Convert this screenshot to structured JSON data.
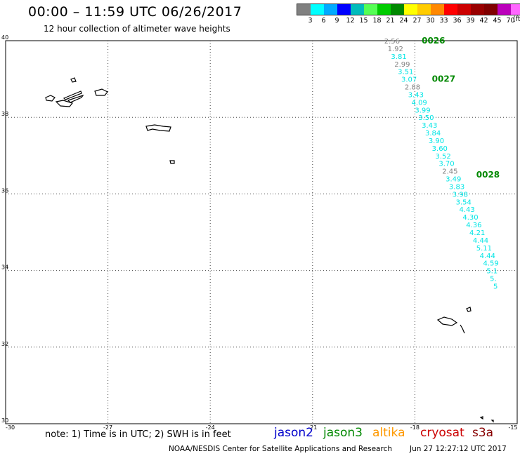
{
  "header": {
    "title": "00:00 – 11:59 UTC 06/26/2017",
    "subtitle": "12 hour collection of altimeter wave heights"
  },
  "scale": {
    "colors": [
      "#808080",
      "#00ffff",
      "#00aaff",
      "#0000ff",
      "#00bbbb",
      "#55ff55",
      "#00cc00",
      "#008800",
      "#ffff00",
      "#ffcc00",
      "#ff8800",
      "#ff0000",
      "#cc0000",
      "#990000",
      "#800000",
      "#bb00bb",
      "#ff66ff",
      "#000000"
    ],
    "labels": [
      "3",
      "6",
      "9",
      "12",
      "15",
      "18",
      "21",
      "24",
      "27",
      "30",
      "33",
      "36",
      "39",
      "42",
      "45",
      "70"
    ],
    "unit": "(ft)"
  },
  "axes": {
    "lat_labels": [
      "40",
      "38",
      "36",
      "34",
      "32",
      "30"
    ],
    "lon_labels": [
      "-30",
      "-27",
      "-24",
      "-21",
      "-18",
      "-15"
    ]
  },
  "track": {
    "times": [
      {
        "label": "0026",
        "lon": -17.8,
        "lat": 40.0
      },
      {
        "label": "0027",
        "lon": -17.5,
        "lat": 39.0
      },
      {
        "label": "0028",
        "lon": -16.2,
        "lat": 36.5
      }
    ],
    "points": [
      {
        "v": "2.56",
        "lon": -18.9,
        "lat": 40.0,
        "c": "#808080"
      },
      {
        "v": "1.92",
        "lon": -18.8,
        "lat": 39.8,
        "c": "#808080"
      },
      {
        "v": "3.81",
        "lon": -18.7,
        "lat": 39.6,
        "c": "#00e5e5"
      },
      {
        "v": "2.99",
        "lon": -18.6,
        "lat": 39.4,
        "c": "#808080"
      },
      {
        "v": "3.51",
        "lon": -18.5,
        "lat": 39.2,
        "c": "#00e5e5"
      },
      {
        "v": "3.07",
        "lon": -18.4,
        "lat": 39.0,
        "c": "#00e5e5"
      },
      {
        "v": "2.88",
        "lon": -18.3,
        "lat": 38.8,
        "c": "#808080"
      },
      {
        "v": "3.43",
        "lon": -18.2,
        "lat": 38.6,
        "c": "#00e5e5"
      },
      {
        "v": "4.09",
        "lon": -18.1,
        "lat": 38.4,
        "c": "#00e5e5"
      },
      {
        "v": "3.99",
        "lon": -18.0,
        "lat": 38.2,
        "c": "#00e5e5"
      },
      {
        "v": "3.50",
        "lon": -17.9,
        "lat": 38.0,
        "c": "#00e5e5"
      },
      {
        "v": "3.43",
        "lon": -17.8,
        "lat": 37.8,
        "c": "#00e5e5"
      },
      {
        "v": "3.84",
        "lon": -17.7,
        "lat": 37.6,
        "c": "#00e5e5"
      },
      {
        "v": "3.90",
        "lon": -17.6,
        "lat": 37.4,
        "c": "#00e5e5"
      },
      {
        "v": "3.60",
        "lon": -17.5,
        "lat": 37.2,
        "c": "#00e5e5"
      },
      {
        "v": "3.52",
        "lon": -17.4,
        "lat": 37.0,
        "c": "#00e5e5"
      },
      {
        "v": "3.70",
        "lon": -17.3,
        "lat": 36.8,
        "c": "#00e5e5"
      },
      {
        "v": "2.45",
        "lon": -17.2,
        "lat": 36.6,
        "c": "#808080"
      },
      {
        "v": "3.49",
        "lon": -17.1,
        "lat": 36.4,
        "c": "#00e5e5"
      },
      {
        "v": "3.83",
        "lon": -17.0,
        "lat": 36.2,
        "c": "#00e5e5"
      },
      {
        "v": "3.98",
        "lon": -16.9,
        "lat": 36.0,
        "c": "#00e5e5"
      },
      {
        "v": "3.54",
        "lon": -16.8,
        "lat": 35.8,
        "c": "#00e5e5"
      },
      {
        "v": "4.43",
        "lon": -16.7,
        "lat": 35.6,
        "c": "#00e5e5"
      },
      {
        "v": "4.30",
        "lon": -16.6,
        "lat": 35.4,
        "c": "#00e5e5"
      },
      {
        "v": "4.36",
        "lon": -16.5,
        "lat": 35.2,
        "c": "#00e5e5"
      },
      {
        "v": "4.21",
        "lon": -16.4,
        "lat": 35.0,
        "c": "#00e5e5"
      },
      {
        "v": "4.44",
        "lon": -16.3,
        "lat": 34.8,
        "c": "#00e5e5"
      },
      {
        "v": "5.11",
        "lon": -16.2,
        "lat": 34.6,
        "c": "#00e5e5"
      },
      {
        "v": "4.44",
        "lon": -16.1,
        "lat": 34.4,
        "c": "#00e5e5"
      },
      {
        "v": "4.59",
        "lon": -16.0,
        "lat": 34.2,
        "c": "#00e5e5"
      },
      {
        "v": "5.1",
        "lon": -15.9,
        "lat": 34.0,
        "c": "#00e5e5"
      },
      {
        "v": "5.",
        "lon": -15.8,
        "lat": 33.8,
        "c": "#00e5e5"
      },
      {
        "v": "5",
        "lon": -15.7,
        "lat": 33.6,
        "c": "#00e5e5"
      }
    ]
  },
  "footer": {
    "note": "note:  1) Time is in UTC;  2) SWH is in feet",
    "legend": [
      {
        "name": "jason2",
        "color": "#0000cc"
      },
      {
        "name": "jason3",
        "color": "#008800"
      },
      {
        "name": "altika",
        "color": "#ff9900"
      },
      {
        "name": "cryosat",
        "color": "#cc0000"
      },
      {
        "name": "s3a",
        "color": "#880000"
      }
    ],
    "credit": "NOAA/NESDIS Center for Satellite Applications and Research",
    "timestamp": "Jun 27 12:27:12 UTC 2017"
  }
}
